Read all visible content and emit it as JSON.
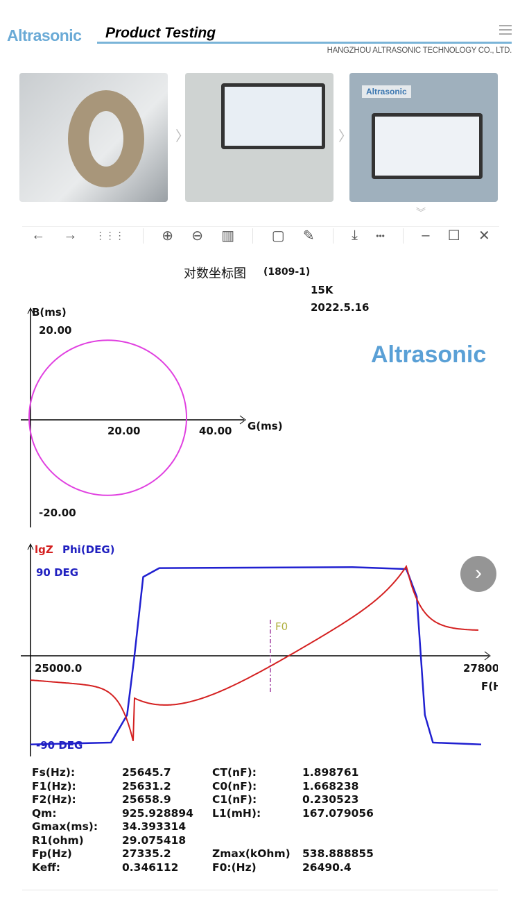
{
  "header": {
    "logo": "Altrasonic",
    "title": "Product Testing",
    "company": "HANGZHOU ALTRASONIC TECHNOLOGY CO., LTD.",
    "menu_icon": "hamburger-icon"
  },
  "gallery": {
    "images": [
      "piezo-ring-in-fixture",
      "impedance-analyzer-with-ring",
      "altrasonic-analyzer-screen"
    ],
    "device_brand": "Altrasonic",
    "separator": "〉",
    "more_icon": "double-chevron-down-icon"
  },
  "toolbar": {
    "icons": [
      "back-icon",
      "forward-icon",
      "grid-icon",
      "zoom-in-icon",
      "zoom-out-icon",
      "fit-icon",
      "rotate-icon",
      "edit-icon",
      "download-icon",
      "more-icon",
      "minimize-icon",
      "maximize-icon",
      "close-icon"
    ],
    "glyphs": [
      "←",
      "→",
      "⋮⋮⋮",
      "⊕",
      "⊖",
      "▥",
      "▢",
      "✎",
      "⤓",
      "•••",
      "–",
      "☐",
      "✕"
    ]
  },
  "chart": {
    "title": "对数坐标图",
    "code": "(1809-1)",
    "freq": "15K",
    "date": "2022.5.16",
    "watermark": "Altrasonic"
  },
  "chart_data": [
    {
      "type": "scatter",
      "subtype": "admittance-circle",
      "xlabel": "G(ms)",
      "ylabel": "B(ms)",
      "x_ticks": [
        "20.00",
        "40.00"
      ],
      "y_ticks": [
        "20.00",
        "-20.00"
      ],
      "circle": {
        "center_G": 17.2,
        "center_B": 0,
        "radius": 17.2
      },
      "color": "#e040e0"
    },
    {
      "type": "line",
      "xlabel": "F(Hz)",
      "x_ticks": [
        "25000.0",
        "27800"
      ],
      "xlim": [
        25000,
        27800
      ],
      "legend": [
        "lgZ",
        "Phi(DEG)"
      ],
      "y_ticks": [
        "90 DEG",
        "-90 DEG"
      ],
      "marker_label": "F0",
      "marker_x": 26490.4,
      "series": [
        {
          "name": "lgZ",
          "color": "#d42020",
          "min_at": 25645.7,
          "max_at": 27335.2
        },
        {
          "name": "Phi(DEG)",
          "color": "#2020d0",
          "x": [
            25000,
            25500,
            25600,
            25645.7,
            25700,
            25800,
            27000,
            27335,
            27400,
            27450,
            27500,
            27800
          ],
          "values": [
            -90,
            -88,
            -60,
            0,
            80,
            89,
            90,
            88,
            60,
            -60,
            -88,
            -90
          ]
        }
      ]
    }
  ],
  "params": [
    [
      "Fs(Hz):",
      "25645.7",
      "CT(nF):",
      "1.898761"
    ],
    [
      "F1(Hz):",
      "25631.2",
      "C0(nF):",
      "1.668238"
    ],
    [
      "F2(Hz):",
      "25658.9",
      "C1(nF):",
      "0.230523"
    ],
    [
      "Qm:",
      "925.928894",
      "L1(mH):",
      "167.079056"
    ],
    [
      "Gmax(ms):",
      "34.393314",
      "",
      ""
    ],
    [
      "R1(ohm)",
      "29.075418",
      "",
      ""
    ],
    [
      "Fp(Hz)",
      "27335.2",
      "Zmax(kOhm)",
      "538.888855"
    ],
    [
      "Keff:",
      "0.346112",
      "F0:(Hz)",
      "26490.4"
    ]
  ],
  "next_button": "›"
}
